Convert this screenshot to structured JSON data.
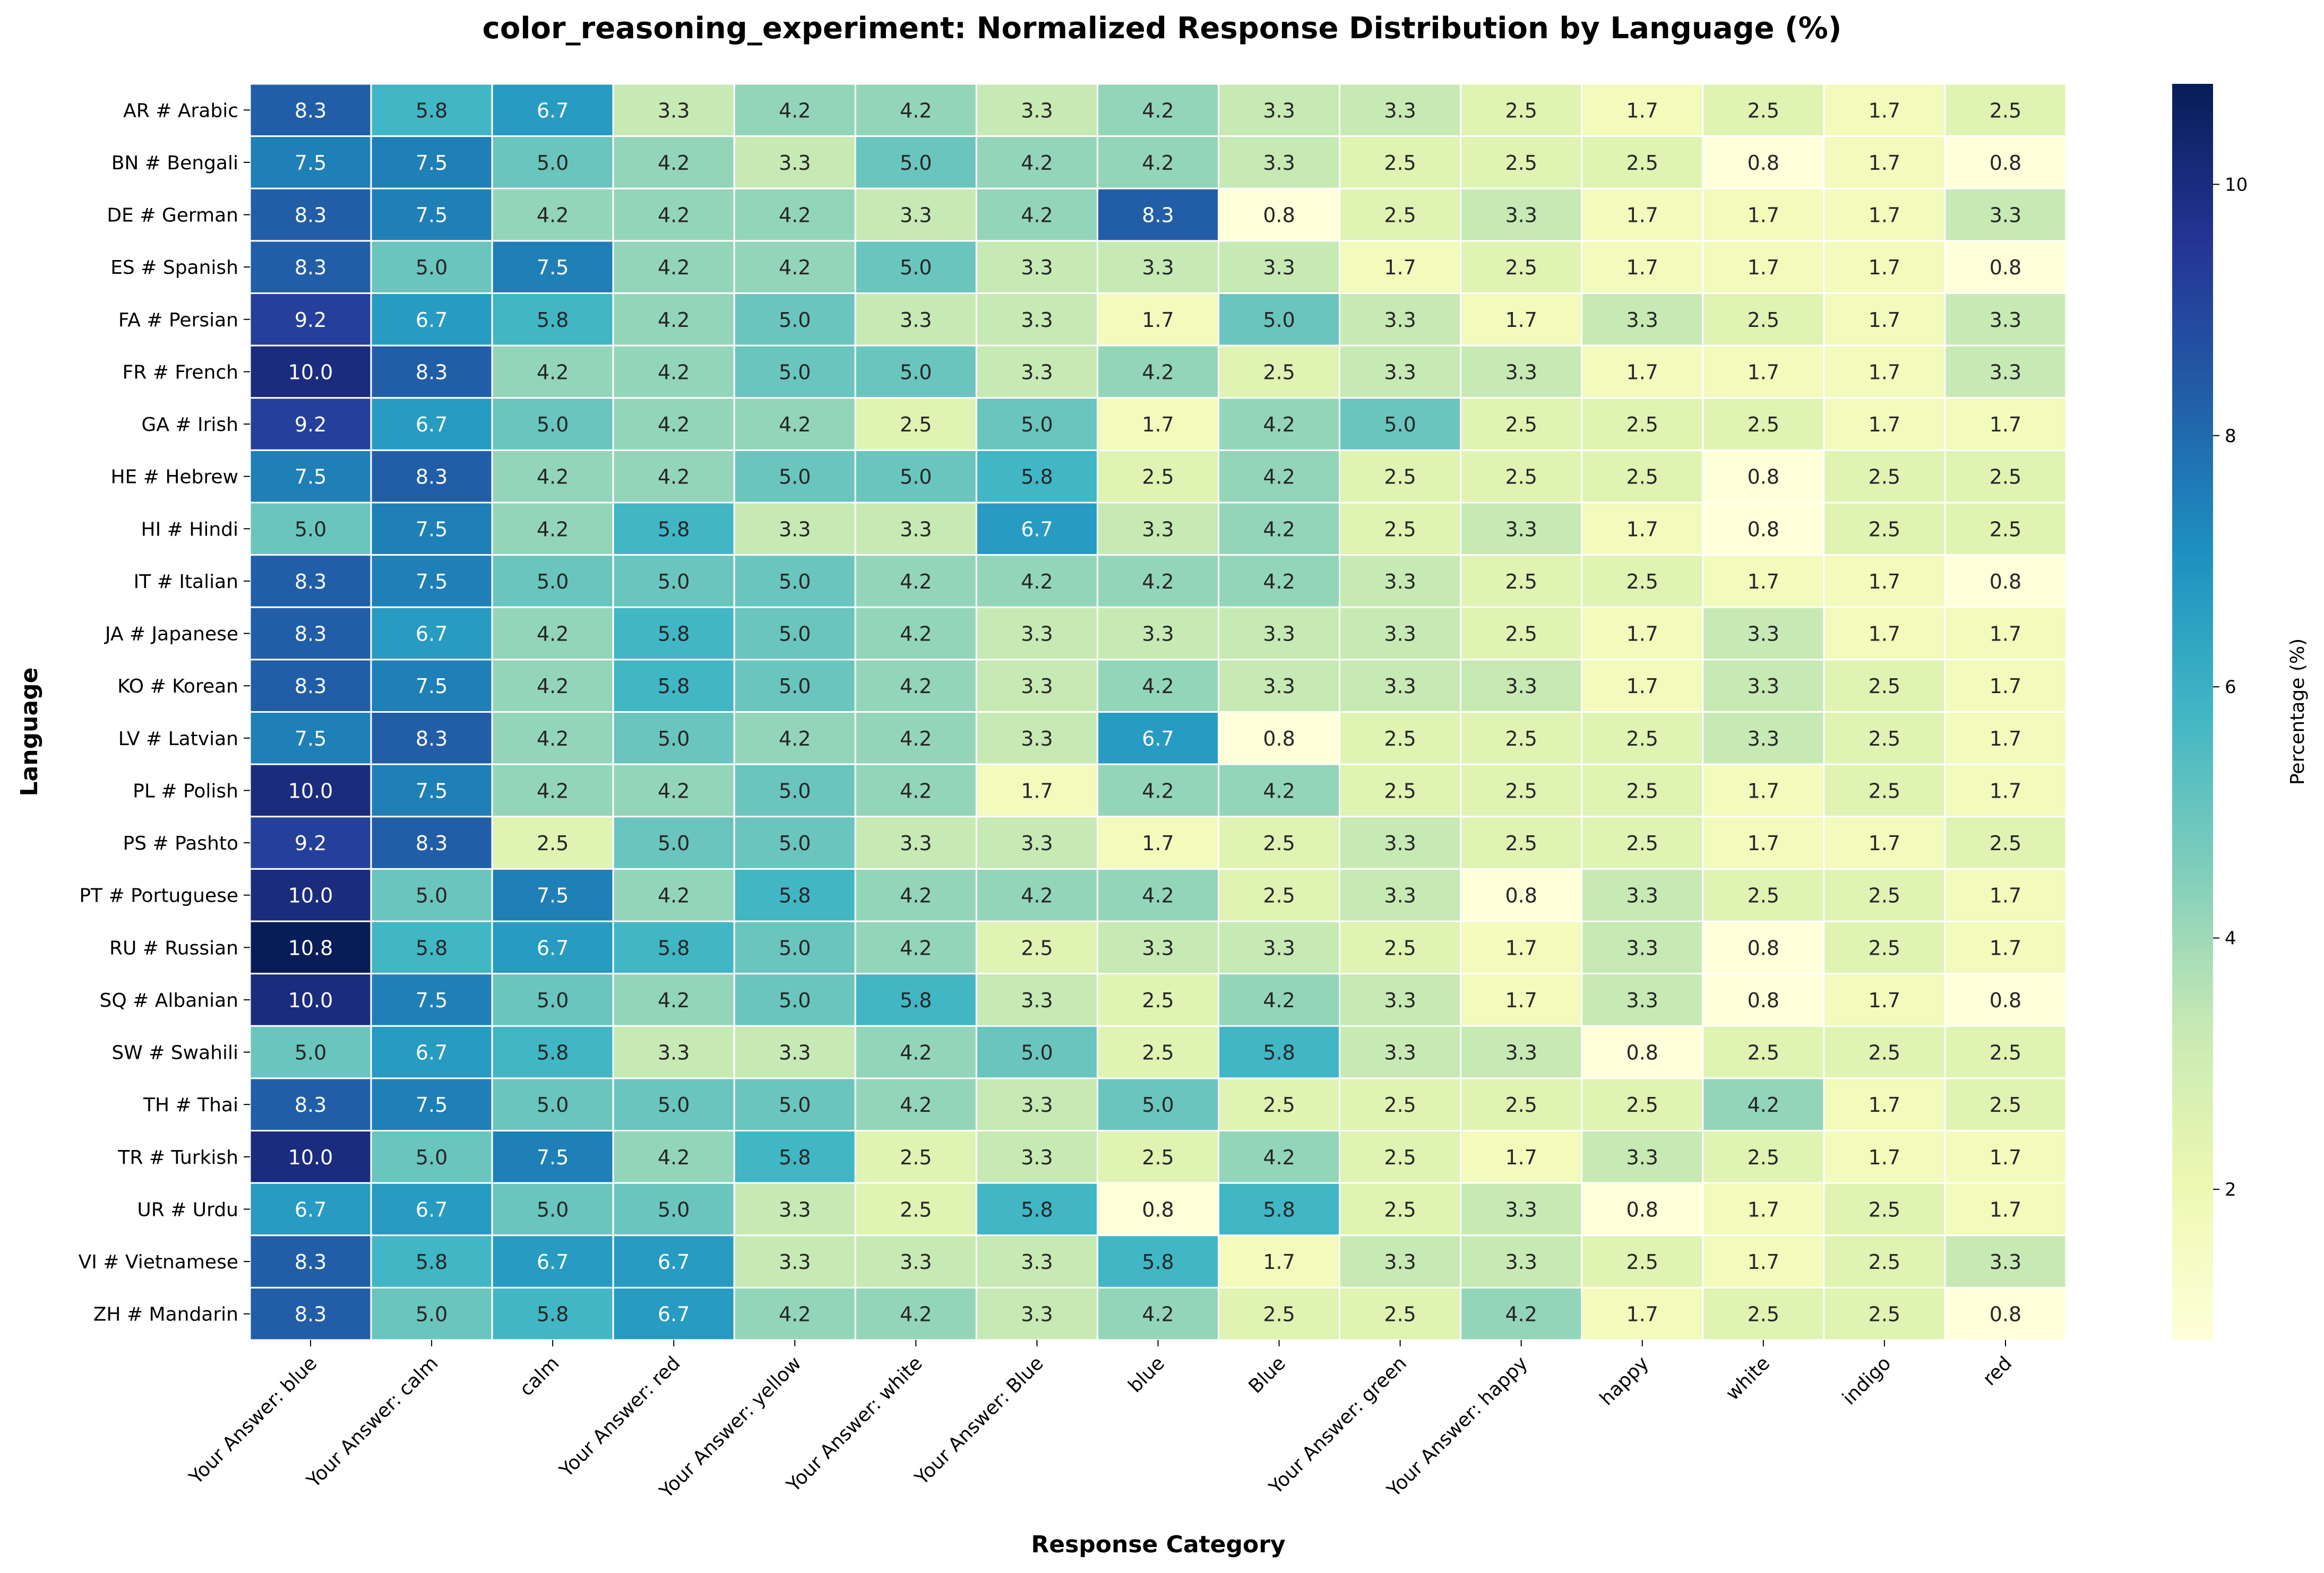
{
  "chart_data": {
    "type": "heatmap",
    "title": "color_reasoning_experiment: Normalized Response Distribution by Language (%)",
    "xlabel": "Response Category",
    "ylabel": "Language",
    "colorbar_label": "Percentage (%)",
    "colorbar_ticks": [
      2,
      4,
      6,
      8,
      10
    ],
    "value_range": [
      0.8,
      10.8
    ],
    "colormap": "YlGnBu",
    "rows": [
      "AR # Arabic",
      "BN # Bengali",
      "DE # German",
      "ES # Spanish",
      "FA # Persian",
      "FR # French",
      "GA # Irish",
      "HE # Hebrew",
      "HI # Hindi",
      "IT # Italian",
      "JA # Japanese",
      "KO # Korean",
      "LV # Latvian",
      "PL # Polish",
      "PS # Pashto",
      "PT # Portuguese",
      "RU # Russian",
      "SQ # Albanian",
      "SW # Swahili",
      "TH # Thai",
      "TR # Turkish",
      "UR # Urdu",
      "VI # Vietnamese",
      "ZH # Mandarin"
    ],
    "columns": [
      "Your Answer: blue",
      "Your Answer: calm",
      "calm",
      "Your Answer: red",
      "Your Answer: yellow",
      "Your Answer: white",
      "Your Answer: Blue",
      "blue",
      "Blue",
      "Your Answer: green",
      "Your Answer: happy",
      "happy",
      "white",
      "indigo",
      "red"
    ],
    "values": [
      [
        8.3,
        5.8,
        6.7,
        3.3,
        4.2,
        4.2,
        3.3,
        4.2,
        3.3,
        3.3,
        2.5,
        1.7,
        2.5,
        1.7,
        2.5
      ],
      [
        7.5,
        7.5,
        5.0,
        4.2,
        3.3,
        5.0,
        4.2,
        4.2,
        3.3,
        2.5,
        2.5,
        2.5,
        0.8,
        1.7,
        0.8
      ],
      [
        8.3,
        7.5,
        4.2,
        4.2,
        4.2,
        3.3,
        4.2,
        8.3,
        0.8,
        2.5,
        3.3,
        1.7,
        1.7,
        1.7,
        3.3
      ],
      [
        8.3,
        5.0,
        7.5,
        4.2,
        4.2,
        5.0,
        3.3,
        3.3,
        3.3,
        1.7,
        2.5,
        1.7,
        1.7,
        1.7,
        0.8
      ],
      [
        9.2,
        6.7,
        5.8,
        4.2,
        5.0,
        3.3,
        3.3,
        1.7,
        5.0,
        3.3,
        1.7,
        3.3,
        2.5,
        1.7,
        3.3
      ],
      [
        10.0,
        8.3,
        4.2,
        4.2,
        5.0,
        5.0,
        3.3,
        4.2,
        2.5,
        3.3,
        3.3,
        1.7,
        1.7,
        1.7,
        3.3
      ],
      [
        9.2,
        6.7,
        5.0,
        4.2,
        4.2,
        2.5,
        5.0,
        1.7,
        4.2,
        5.0,
        2.5,
        2.5,
        2.5,
        1.7,
        1.7
      ],
      [
        7.5,
        8.3,
        4.2,
        4.2,
        5.0,
        5.0,
        5.8,
        2.5,
        4.2,
        2.5,
        2.5,
        2.5,
        0.8,
        2.5,
        2.5
      ],
      [
        5.0,
        7.5,
        4.2,
        5.8,
        3.3,
        3.3,
        6.7,
        3.3,
        4.2,
        2.5,
        3.3,
        1.7,
        0.8,
        2.5,
        2.5
      ],
      [
        8.3,
        7.5,
        5.0,
        5.0,
        5.0,
        4.2,
        4.2,
        4.2,
        4.2,
        3.3,
        2.5,
        2.5,
        1.7,
        1.7,
        0.8
      ],
      [
        8.3,
        6.7,
        4.2,
        5.8,
        5.0,
        4.2,
        3.3,
        3.3,
        3.3,
        3.3,
        2.5,
        1.7,
        3.3,
        1.7,
        1.7
      ],
      [
        8.3,
        7.5,
        4.2,
        5.8,
        5.0,
        4.2,
        3.3,
        4.2,
        3.3,
        3.3,
        3.3,
        1.7,
        3.3,
        2.5,
        1.7
      ],
      [
        7.5,
        8.3,
        4.2,
        5.0,
        4.2,
        4.2,
        3.3,
        6.7,
        0.8,
        2.5,
        2.5,
        2.5,
        3.3,
        2.5,
        1.7
      ],
      [
        10.0,
        7.5,
        4.2,
        4.2,
        5.0,
        4.2,
        1.7,
        4.2,
        4.2,
        2.5,
        2.5,
        2.5,
        1.7,
        2.5,
        1.7
      ],
      [
        9.2,
        8.3,
        2.5,
        5.0,
        5.0,
        3.3,
        3.3,
        1.7,
        2.5,
        3.3,
        2.5,
        2.5,
        1.7,
        1.7,
        2.5
      ],
      [
        10.0,
        5.0,
        7.5,
        4.2,
        5.8,
        4.2,
        4.2,
        4.2,
        2.5,
        3.3,
        0.8,
        3.3,
        2.5,
        2.5,
        1.7
      ],
      [
        10.8,
        5.8,
        6.7,
        5.8,
        5.0,
        4.2,
        2.5,
        3.3,
        3.3,
        2.5,
        1.7,
        3.3,
        0.8,
        2.5,
        1.7
      ],
      [
        10.0,
        7.5,
        5.0,
        4.2,
        5.0,
        5.8,
        3.3,
        2.5,
        4.2,
        3.3,
        1.7,
        3.3,
        0.8,
        1.7,
        0.8
      ],
      [
        5.0,
        6.7,
        5.8,
        3.3,
        3.3,
        4.2,
        5.0,
        2.5,
        5.8,
        3.3,
        3.3,
        0.8,
        2.5,
        2.5,
        2.5
      ],
      [
        8.3,
        7.5,
        5.0,
        5.0,
        5.0,
        4.2,
        3.3,
        5.0,
        2.5,
        2.5,
        2.5,
        2.5,
        4.2,
        1.7,
        2.5
      ],
      [
        10.0,
        5.0,
        7.5,
        4.2,
        5.8,
        2.5,
        3.3,
        2.5,
        4.2,
        2.5,
        1.7,
        3.3,
        2.5,
        1.7,
        1.7
      ],
      [
        6.7,
        6.7,
        5.0,
        5.0,
        3.3,
        2.5,
        5.8,
        0.8,
        5.8,
        2.5,
        3.3,
        0.8,
        1.7,
        2.5,
        1.7
      ],
      [
        8.3,
        5.8,
        6.7,
        6.7,
        3.3,
        3.3,
        3.3,
        5.8,
        1.7,
        3.3,
        3.3,
        2.5,
        1.7,
        2.5,
        3.3
      ],
      [
        8.3,
        5.0,
        5.8,
        6.7,
        4.2,
        4.2,
        3.3,
        4.2,
        2.5,
        2.5,
        4.2,
        1.7,
        2.5,
        2.5,
        0.8
      ]
    ]
  }
}
